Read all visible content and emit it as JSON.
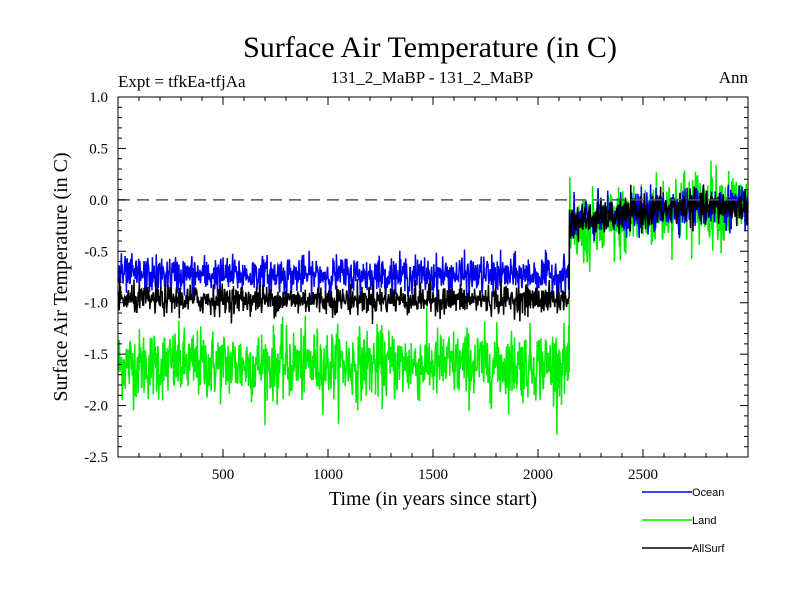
{
  "chart_data": {
    "type": "line",
    "title": "Surface Air Temperature (in C)",
    "subtitle_left": "Expt = tfkEa-tfjAa",
    "subtitle_center": "131_2_MaBP - 131_2_MaBP",
    "subtitle_right": "Ann",
    "xlabel": "Time (in years since start)",
    "ylabel": "Surface Air Temperature (in C)",
    "xlim": [
      0,
      3000
    ],
    "ylim": [
      -2.5,
      1.0
    ],
    "x_ticks": [
      500,
      1000,
      1500,
      2000,
      2500
    ],
    "x_tick_labels": [
      "500",
      "1000",
      "1500",
      "2000",
      "2500"
    ],
    "y_ticks": [
      -2.5,
      -2.0,
      -1.5,
      -1.0,
      -0.5,
      0.0,
      0.5,
      1.0
    ],
    "y_tick_labels": [
      "-2.5",
      "-2.0",
      "-1.5",
      "-1.0",
      "-0.5",
      "0.0",
      "0.5",
      "1.0"
    ],
    "reference_line": {
      "y": 0.0,
      "style": "dashed",
      "color": "#555555"
    },
    "step_year": 2150,
    "legend_position": "bottom-right, below plot",
    "grid": false,
    "series": [
      {
        "name": "Ocean",
        "color": "#0000ee",
        "mean_before": -0.73,
        "sd_before": 0.09,
        "mean_after_start": -0.22,
        "mean_after_end": -0.07,
        "sd_after": 0.1,
        "range_before": [
          -1.0,
          -0.42
        ],
        "range_after": [
          -0.5,
          0.2
        ]
      },
      {
        "name": "Land",
        "color": "#00ee00",
        "mean_before": -1.6,
        "sd_before": 0.17,
        "mean_after_start": -0.35,
        "mean_after_end": -0.05,
        "sd_after": 0.18,
        "range_before": [
          -2.38,
          -0.8
        ],
        "range_after": [
          -0.95,
          0.55
        ]
      },
      {
        "name": "AllSurf",
        "color": "#000000",
        "mean_before": -0.97,
        "sd_before": 0.07,
        "mean_after_start": -0.22,
        "mean_after_end": -0.07,
        "sd_after": 0.08,
        "range_before": [
          -1.3,
          -0.7
        ],
        "range_after": [
          -0.5,
          0.15
        ]
      }
    ]
  }
}
